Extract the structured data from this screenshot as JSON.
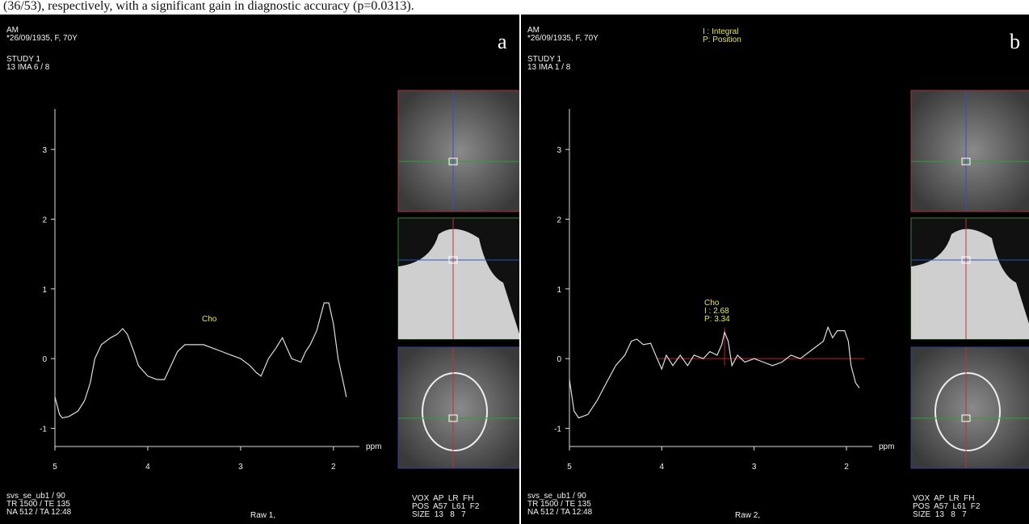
{
  "caption_fragment": "(36/53), respectively, with a significant gain in diagnostic accuracy (p=0.0313).",
  "panels": [
    {
      "label": "a",
      "patient": "AM",
      "dob": "*26/09/1935, F, 70Y",
      "study": "STUDY 1",
      "image": "13 IMA 6 / 8",
      "params": [
        "svs_se_ub1 / 90",
        "TR 1500 / TE 135",
        "NA 512 / TA 12:48"
      ],
      "raw": "Raw 1,",
      "vox": [
        "VOX  AP  LR  FH",
        "POS  A57  L61  F2",
        "SIZE  13   8   7"
      ]
    },
    {
      "label": "b",
      "patient": "AM",
      "dob": "*26/09/1935, F, 70Y",
      "study": "STUDY 1",
      "image": "13 IMA 1 / 8",
      "legend": [
        "I : Integral",
        "P: Position"
      ],
      "params": [
        "svs_se_ub1 / 90",
        "TR 1500 / TE 135",
        "NA 512 / TA 12:48"
      ],
      "raw": "Raw 2,",
      "vox": [
        "VOX  AP  LR  FH",
        "POS  A57  L61  F2",
        "SIZE  13   8   7"
      ]
    }
  ],
  "chart_data": [
    {
      "type": "line",
      "x_label": "ppm",
      "annotations": [
        "Cho"
      ],
      "color": "#dddddd",
      "x": [
        5.0,
        4.95,
        4.92,
        4.85,
        4.75,
        4.68,
        4.62,
        4.57,
        4.5,
        4.4,
        4.33,
        4.27,
        4.22,
        4.15,
        4.1,
        4.0,
        3.9,
        3.82,
        3.75,
        3.68,
        3.6,
        3.5,
        3.4,
        3.3,
        3.2,
        3.1,
        3.0,
        2.9,
        2.83,
        2.78,
        2.7,
        2.62,
        2.55,
        2.5,
        2.45,
        2.35,
        2.3,
        2.25,
        2.18,
        2.1,
        2.05,
        2.0,
        1.95,
        1.9,
        1.86
      ],
      "values": [
        -0.55,
        -0.8,
        -0.85,
        -0.83,
        -0.75,
        -0.6,
        -0.35,
        0,
        0.2,
        0.3,
        0.35,
        0.43,
        0.35,
        0.1,
        -0.1,
        -0.25,
        -0.3,
        -0.3,
        -0.1,
        0.1,
        0.2,
        0.2,
        0.2,
        0.15,
        0.1,
        0.05,
        0,
        -0.1,
        -0.2,
        -0.25,
        0,
        0.15,
        0.3,
        0.15,
        0,
        -0.05,
        0.1,
        0.2,
        0.4,
        0.8,
        0.8,
        0.5,
        0,
        -0.3,
        -0.55
      ],
      "xlim": [
        5.0,
        1.72
      ],
      "ylim": [
        -1.26,
        3.58
      ],
      "xticks": [
        5,
        4,
        3,
        2
      ],
      "yticks": [
        -1,
        0,
        1,
        2,
        3
      ]
    },
    {
      "type": "line",
      "x_label": "ppm",
      "annotations": [
        "Cho",
        "I : 2.68",
        "P: 3.34"
      ],
      "color": "#dddddd",
      "x": [
        5.0,
        4.95,
        4.9,
        4.8,
        4.7,
        4.6,
        4.5,
        4.4,
        4.33,
        4.27,
        4.2,
        4.12,
        4.05,
        4.0,
        3.95,
        3.88,
        3.8,
        3.72,
        3.65,
        3.55,
        3.48,
        3.4,
        3.35,
        3.32,
        3.28,
        3.24,
        3.18,
        3.1,
        3.0,
        2.9,
        2.8,
        2.7,
        2.6,
        2.5,
        2.4,
        2.3,
        2.25,
        2.2,
        2.15,
        2.1,
        2.02,
        1.98,
        1.95,
        1.9,
        1.86
      ],
      "values": [
        -0.3,
        -0.75,
        -0.85,
        -0.8,
        -0.6,
        -0.35,
        -0.1,
        0.05,
        0.25,
        0.28,
        0.2,
        0.22,
        0,
        -0.15,
        0.05,
        -0.1,
        0.05,
        -0.1,
        0.05,
        0,
        0.1,
        0.05,
        0.2,
        0.38,
        0.25,
        -0.1,
        0.05,
        -0.05,
        0,
        -0.05,
        -0.1,
        -0.05,
        0.05,
        0,
        0.1,
        0.2,
        0.25,
        0.45,
        0.3,
        0.4,
        0.4,
        0.25,
        -0.1,
        -0.35,
        -0.42
      ],
      "xlim": [
        5.0,
        1.72
      ],
      "ylim": [
        -1.26,
        3.58
      ],
      "xticks": [
        5,
        4,
        3,
        2
      ],
      "yticks": [
        -1,
        0,
        1,
        2,
        3
      ]
    }
  ]
}
